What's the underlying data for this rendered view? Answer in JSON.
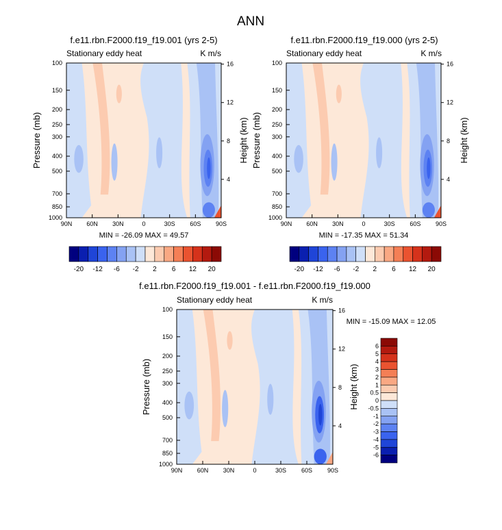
{
  "page_title": "ANN",
  "chart_data": [
    {
      "type": "heatmap",
      "title": "f.e11.rbn.F2000.f19_f19.001 (yrs 2-5)",
      "left_string": "Stationary eddy heat",
      "units": "K m/s",
      "xlabel": "",
      "ylabel": "Pressure (mb)",
      "ylabel_right": "Height (km)",
      "x_ticks": [
        "90N",
        "60N",
        "30N",
        "0",
        "30S",
        "60S",
        "90S"
      ],
      "y_ticks": [
        "100",
        "150",
        "200",
        "250",
        "300",
        "400",
        "500",
        "700",
        "850",
        "1000"
      ],
      "height_ticks": [
        "16",
        "12",
        "8",
        "4"
      ],
      "min_max": "MIN = -26.09  MAX = 49.57",
      "colorbar_labels": [
        "-20",
        "-12",
        "-6",
        "-2",
        "2",
        "6",
        "12",
        "20"
      ],
      "colors": [
        "#00007f",
        "#0a1fb0",
        "#1f45d8",
        "#3a63ee",
        "#5d82f2",
        "#84a2f2",
        "#a9c2f5",
        "#cfdff8",
        "#fde8d8",
        "#fccbb0",
        "#f9a883",
        "#f47f56",
        "#ea5330",
        "#d5321b",
        "#b31a0f",
        "#8b0a05"
      ]
    },
    {
      "type": "heatmap",
      "title": "f.e11.rbn.F2000.f19_f19.000 (yrs 2-5)",
      "left_string": "Stationary eddy heat",
      "units": "K m/s",
      "xlabel": "",
      "ylabel": "Pressure (mb)",
      "ylabel_right": "Height (km)",
      "x_ticks": [
        "90N",
        "60N",
        "30N",
        "0",
        "30S",
        "60S",
        "90S"
      ],
      "y_ticks": [
        "100",
        "150",
        "200",
        "250",
        "300",
        "400",
        "500",
        "700",
        "850",
        "1000"
      ],
      "height_ticks": [
        "16",
        "12",
        "8",
        "4"
      ],
      "min_max": "MIN = -17.35  MAX = 51.34",
      "colorbar_labels": [
        "-20",
        "-12",
        "-6",
        "-2",
        "2",
        "6",
        "12",
        "20"
      ],
      "colors": [
        "#00007f",
        "#0a1fb0",
        "#1f45d8",
        "#3a63ee",
        "#5d82f2",
        "#84a2f2",
        "#a9c2f5",
        "#cfdff8",
        "#fde8d8",
        "#fccbb0",
        "#f9a883",
        "#f47f56",
        "#ea5330",
        "#d5321b",
        "#b31a0f",
        "#8b0a05"
      ]
    },
    {
      "type": "heatmap",
      "title": "f.e11.rbn.F2000.f19_f19.001 - f.e11.rbn.F2000.f19_f19.000",
      "left_string": "Stationary eddy heat",
      "units": "K m/s",
      "xlabel": "",
      "ylabel": "Pressure (mb)",
      "ylabel_right": "Height (km)",
      "x_ticks": [
        "90N",
        "60N",
        "30N",
        "0",
        "30S",
        "60S",
        "90S"
      ],
      "y_ticks": [
        "100",
        "150",
        "200",
        "250",
        "300",
        "400",
        "500",
        "700",
        "850",
        "1000"
      ],
      "height_ticks": [
        "16",
        "12",
        "8",
        "4"
      ],
      "min_max": "MIN = -15.09  MAX = 12.05",
      "colorbar_labels": [
        "6",
        "5",
        "4",
        "3",
        "2",
        "1",
        "0.5",
        "0",
        "-0.5",
        "-1",
        "-2",
        "-3",
        "-4",
        "-5",
        "-6"
      ],
      "colors": [
        "#8b0a05",
        "#b31a0f",
        "#d5321b",
        "#ea5330",
        "#f47f56",
        "#f9a883",
        "#fccbb0",
        "#fde8d8",
        "#cfdff8",
        "#a9c2f5",
        "#84a2f2",
        "#5d82f2",
        "#3a63ee",
        "#1f45d8",
        "#0a1fb0",
        "#00007f"
      ]
    }
  ]
}
